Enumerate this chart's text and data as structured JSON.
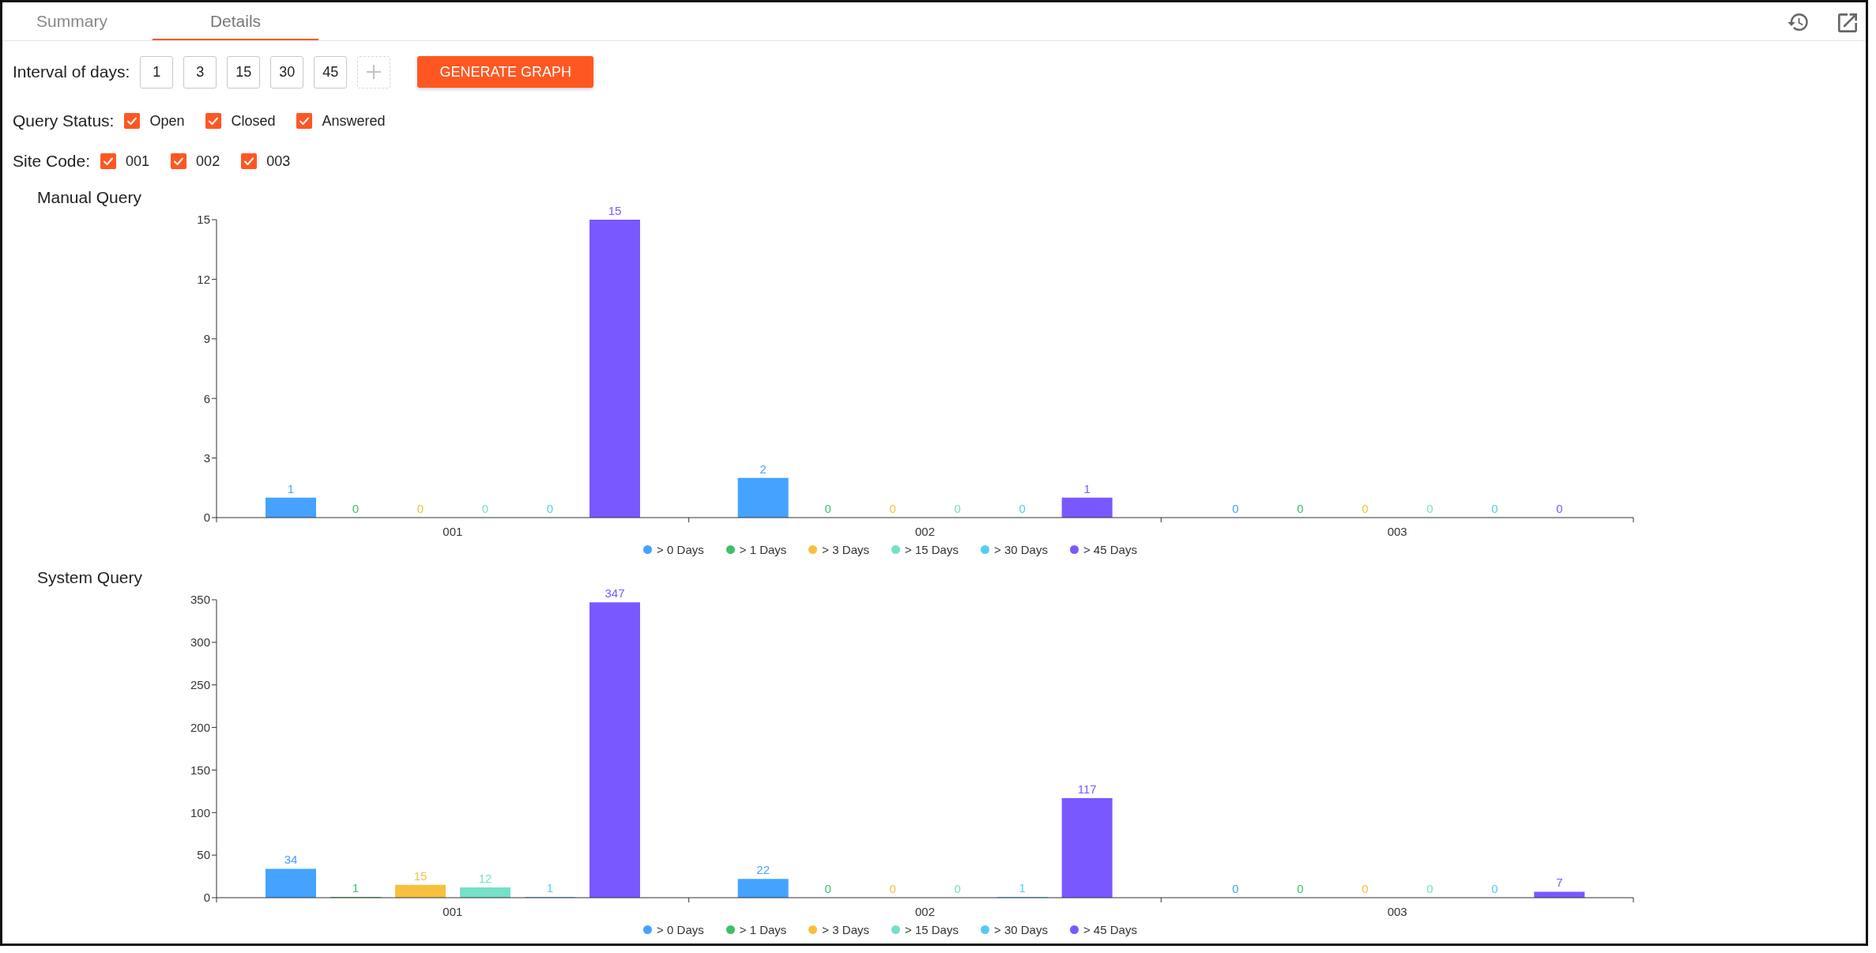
{
  "chart_data": [
    {
      "type": "other",
      "annotations": [
        "Summary",
        "Details",
        "Interval of days:",
        "1",
        "3",
        "15",
        "30",
        "45",
        "GENERATE GRAPH",
        "Query Status:",
        "Open",
        "Closed",
        "Answered",
        "Site Code:",
        "001",
        "002",
        "003"
      ]
    },
    {
      "type": "bar",
      "title": "Manual Query",
      "categories": [
        "001",
        "002",
        "003"
      ],
      "series": [
        {
          "name": "> 0 Days",
          "color": "#45a2ff",
          "values": [
            1,
            2,
            0
          ]
        },
        {
          "name": "> 1 Days",
          "color": "#3cc068",
          "values": [
            0,
            0,
            0
          ]
        },
        {
          "name": "> 3 Days",
          "color": "#f8c03f",
          "values": [
            0,
            0,
            0
          ]
        },
        {
          "name": "> 15 Days",
          "color": "#76e0c8",
          "values": [
            0,
            0,
            0
          ]
        },
        {
          "name": "> 30 Days",
          "color": "#55cbf4",
          "values": [
            0,
            0,
            0
          ]
        },
        {
          "name": "> 45 Days",
          "color": "#7a58ff",
          "values": [
            15,
            1,
            0
          ]
        }
      ],
      "ylim": [
        0,
        15
      ],
      "yticks": [
        0,
        3,
        6,
        9,
        12,
        15
      ],
      "data_labels": true,
      "legend": "bottom"
    },
    {
      "type": "bar",
      "title": "System Query",
      "categories": [
        "001",
        "002",
        "003"
      ],
      "series": [
        {
          "name": "> 0 Days",
          "color": "#45a2ff",
          "values": [
            34,
            22,
            0
          ]
        },
        {
          "name": "> 1 Days",
          "color": "#3cc068",
          "values": [
            1,
            0,
            0
          ]
        },
        {
          "name": "> 3 Days",
          "color": "#f8c03f",
          "values": [
            15,
            0,
            0
          ]
        },
        {
          "name": "> 15 Days",
          "color": "#76e0c8",
          "values": [
            12,
            0,
            0
          ]
        },
        {
          "name": "> 30 Days",
          "color": "#55cbf4",
          "values": [
            1,
            1,
            0
          ]
        },
        {
          "name": "> 45 Days",
          "color": "#7a58ff",
          "values": [
            347,
            117,
            7
          ]
        }
      ],
      "ylim": [
        0,
        350
      ],
      "yticks": [
        0,
        50,
        100,
        150,
        200,
        250,
        300,
        350
      ],
      "data_labels": true,
      "legend": "bottom"
    }
  ]
}
